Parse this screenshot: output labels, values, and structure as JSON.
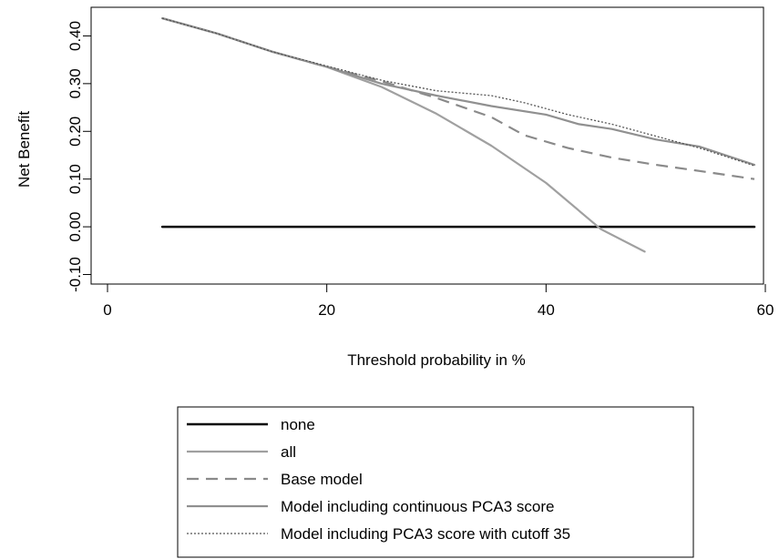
{
  "chart_data": {
    "type": "line",
    "xlabel": "Threshold probability in %",
    "ylabel": "Net Benefit",
    "xlim": [
      -2,
      61
    ],
    "ylim": [
      -0.12,
      0.46
    ],
    "xticks": [
      0,
      20,
      40,
      60
    ],
    "xtick_labels": [
      "0",
      "20",
      "40",
      "60"
    ],
    "yticks": [
      -0.1,
      0.0,
      0.1,
      0.2,
      0.3,
      0.4
    ],
    "ytick_labels": [
      "-0.10",
      "0.00",
      "0.10",
      "0.20",
      "0.30",
      "0.40"
    ],
    "grid": false,
    "legend_position": "bottom",
    "series": [
      {
        "name": "none",
        "color": "#000000",
        "dash": "solid",
        "x": [
          5,
          59
        ],
        "y": [
          0.0,
          0.0
        ]
      },
      {
        "name": "all",
        "color": "#a0a0a0",
        "dash": "solid",
        "x": [
          5,
          10,
          15,
          20,
          25,
          30,
          35,
          40,
          45,
          49
        ],
        "y": [
          0.437,
          0.405,
          0.367,
          0.335,
          0.293,
          0.237,
          0.17,
          0.092,
          -0.005,
          -0.052
        ]
      },
      {
        "name": "Base model",
        "color": "#8a8a8a",
        "dash": "dashed",
        "x": [
          5,
          10,
          15,
          20,
          25,
          30,
          35,
          38,
          42,
          46,
          50,
          54,
          59
        ],
        "y": [
          0.437,
          0.405,
          0.367,
          0.335,
          0.305,
          0.27,
          0.23,
          0.192,
          0.165,
          0.145,
          0.13,
          0.117,
          0.1
        ]
      },
      {
        "name": "Model including continuous PCA3 score",
        "color": "#909090",
        "dash": "solid",
        "x": [
          5,
          10,
          15,
          20,
          25,
          30,
          35,
          40,
          43,
          46,
          50,
          54,
          59
        ],
        "y": [
          0.437,
          0.405,
          0.367,
          0.335,
          0.3,
          0.275,
          0.253,
          0.235,
          0.215,
          0.205,
          0.183,
          0.168,
          0.13
        ]
      },
      {
        "name": "Model including PCA3 score with cutoff 35",
        "color": "#555555",
        "dash": "dotted",
        "x": [
          5,
          10,
          15,
          20,
          25,
          30,
          35,
          38,
          42,
          46,
          50,
          54,
          59
        ],
        "y": [
          0.437,
          0.405,
          0.367,
          0.337,
          0.307,
          0.285,
          0.275,
          0.26,
          0.235,
          0.215,
          0.19,
          0.165,
          0.128
        ]
      }
    ]
  }
}
